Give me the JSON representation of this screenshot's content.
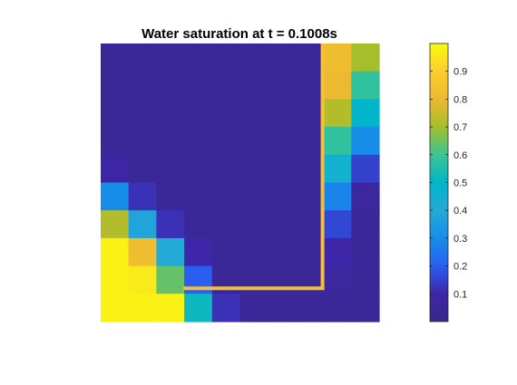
{
  "chart_data": {
    "type": "heatmap",
    "title": "Water saturation at t = 0.1008s",
    "xlabel": "",
    "ylabel": "",
    "colormap": "parula",
    "clim": [
      0,
      1
    ],
    "rows": 10,
    "cols": 10,
    "grid": [
      [
        0.05,
        0.05,
        0.05,
        0.05,
        0.05,
        0.05,
        0.05,
        0.05,
        0.82,
        0.7
      ],
      [
        0.05,
        0.05,
        0.05,
        0.05,
        0.05,
        0.05,
        0.05,
        0.05,
        0.8,
        0.58
      ],
      [
        0.05,
        0.05,
        0.05,
        0.05,
        0.05,
        0.05,
        0.05,
        0.05,
        0.72,
        0.5
      ],
      [
        0.05,
        0.05,
        0.05,
        0.05,
        0.05,
        0.05,
        0.05,
        0.05,
        0.58,
        0.3
      ],
      [
        0.09,
        0.05,
        0.05,
        0.05,
        0.05,
        0.05,
        0.05,
        0.05,
        0.45,
        0.15
      ],
      [
        0.3,
        0.12,
        0.05,
        0.05,
        0.05,
        0.05,
        0.05,
        0.05,
        0.28,
        0.07
      ],
      [
        0.72,
        0.38,
        0.12,
        0.05,
        0.05,
        0.05,
        0.05,
        0.05,
        0.16,
        0.05
      ],
      [
        0.98,
        0.82,
        0.4,
        0.1,
        0.05,
        0.05,
        0.05,
        0.05,
        0.1,
        0.05
      ],
      [
        0.98,
        0.96,
        0.64,
        0.2,
        0.05,
        0.05,
        0.05,
        0.05,
        0.07,
        0.05
      ],
      [
        0.98,
        0.98,
        0.98,
        0.52,
        0.12,
        0.05,
        0.05,
        0.05,
        0.05,
        0.05
      ]
    ],
    "colorbar": {
      "ticks": [
        0.1,
        0.2,
        0.3,
        0.4,
        0.5,
        0.6,
        0.7,
        0.8,
        0.9
      ],
      "tick_labels": [
        "0.1",
        "0.2",
        "0.3",
        "0.4",
        "0.5",
        "0.6",
        "0.7",
        "0.8",
        "0.9"
      ],
      "range": [
        0,
        1
      ]
    },
    "annotation": {
      "shape": "L-shaped well path",
      "color": "#F5BE3D",
      "vertical_at_col": 8,
      "from_row": 0,
      "to_row": 8,
      "horizontal_at_row": 8,
      "from_col": 3,
      "to_col": 8
    }
  }
}
